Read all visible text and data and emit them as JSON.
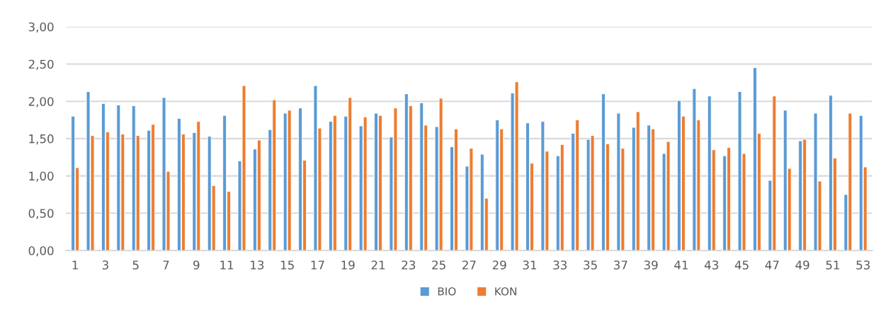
{
  "chart_data": {
    "type": "bar",
    "categories": [
      "1",
      null,
      "3",
      null,
      "5",
      null,
      "7",
      null,
      "9",
      null,
      "11",
      null,
      "13",
      null,
      "15",
      null,
      "17",
      null,
      "19",
      null,
      "21",
      null,
      "23",
      null,
      "25",
      null,
      "27",
      null,
      "29",
      null,
      "31",
      null,
      "33",
      null,
      "35",
      null,
      "37",
      null,
      "39",
      null,
      "41",
      null,
      "43",
      null,
      "45",
      null,
      "47",
      null,
      "49",
      null,
      "51",
      null,
      "53"
    ],
    "series": [
      {
        "name": "BIO",
        "color": "#5b9bd5",
        "values": [
          1.8,
          2.13,
          1.97,
          1.95,
          1.94,
          1.61,
          2.05,
          1.77,
          1.58,
          1.53,
          1.81,
          1.2,
          1.36,
          1.62,
          1.84,
          1.91,
          2.21,
          1.73,
          1.8,
          1.67,
          1.84,
          1.52,
          2.1,
          1.98,
          1.66,
          1.39,
          1.13,
          1.29,
          1.75,
          2.11,
          1.71,
          1.73,
          1.27,
          1.57,
          1.49,
          2.1,
          1.84,
          1.65,
          1.68,
          1.3,
          2.01,
          2.17,
          2.07,
          1.27,
          2.13,
          2.45,
          0.94,
          1.88,
          1.47,
          1.84,
          2.08,
          0.75,
          1.81
        ]
      },
      {
        "name": "KON",
        "color": "#ed7d31",
        "values": [
          1.11,
          1.54,
          1.59,
          1.56,
          1.54,
          1.69,
          1.06,
          1.56,
          1.73,
          0.87,
          0.79,
          2.21,
          1.48,
          2.02,
          1.88,
          1.21,
          1.64,
          1.81,
          2.05,
          1.79,
          1.81,
          1.91,
          1.94,
          1.68,
          2.04,
          1.63,
          1.37,
          0.7,
          1.63,
          2.26,
          1.17,
          1.33,
          1.42,
          1.75,
          1.54,
          1.43,
          1.37,
          1.86,
          1.63,
          1.46,
          1.8,
          1.75,
          1.35,
          1.38,
          1.3,
          1.57,
          2.07,
          1.1,
          1.49,
          0.93,
          1.24,
          1.84,
          1.12
        ]
      }
    ],
    "ylim": [
      0,
      3
    ],
    "yticks": [
      {
        "value": 0,
        "label": "0,00"
      },
      {
        "value": 0.5,
        "label": "0,50"
      },
      {
        "value": 1,
        "label": "1,00"
      },
      {
        "value": 1.5,
        "label": "1,50"
      },
      {
        "value": 2,
        "label": "2,00"
      },
      {
        "value": 2.5,
        "label": "2,50"
      },
      {
        "value": 3,
        "label": "3,00"
      }
    ],
    "grid": "y",
    "legend": "bottom"
  }
}
